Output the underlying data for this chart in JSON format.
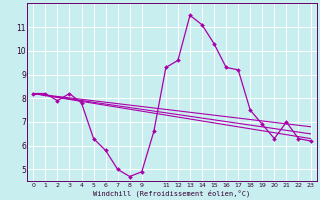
{
  "xlabel": "Windchill (Refroidissement éolien,°C)",
  "bg_color": "#c8eef0",
  "grid_color": "#ffffff",
  "line_color": "#aa00aa",
  "spine_color": "#660066",
  "xlim": [
    -0.5,
    23.5
  ],
  "ylim": [
    4.5,
    12.0
  ],
  "yticks": [
    5,
    6,
    7,
    8,
    9,
    10,
    11
  ],
  "xtick_positions": [
    0,
    1,
    2,
    3,
    4,
    5,
    6,
    7,
    8,
    9,
    11,
    12,
    13,
    14,
    15,
    16,
    17,
    18,
    19,
    20,
    21,
    22,
    23
  ],
  "xtick_labels": [
    "0",
    "1",
    "2",
    "3",
    "4",
    "5",
    "6",
    "7",
    "8",
    "9",
    "11",
    "12",
    "13",
    "14",
    "15",
    "16",
    "17",
    "18",
    "19",
    "20",
    "21",
    "22",
    "23"
  ],
  "series": [
    {
      "x": [
        0,
        1,
        2,
        3,
        4,
        5,
        6,
        7,
        8,
        9,
        10,
        11,
        12,
        13,
        14,
        15,
        16,
        17,
        18,
        19,
        20,
        21,
        22,
        23
      ],
      "y": [
        8.2,
        8.2,
        7.9,
        8.2,
        7.8,
        6.3,
        5.8,
        5.0,
        4.7,
        4.9,
        6.6,
        9.3,
        9.6,
        11.5,
        11.1,
        10.3,
        9.3,
        9.2,
        7.5,
        6.9,
        6.3,
        7.0,
        6.3,
        6.2
      ],
      "marker": "D",
      "markersize": 2.0,
      "linewidth": 0.9
    },
    {
      "x": [
        0,
        23
      ],
      "y": [
        8.2,
        6.3
      ],
      "marker": null,
      "markersize": 0,
      "linewidth": 0.8
    },
    {
      "x": [
        0,
        23
      ],
      "y": [
        8.2,
        6.5
      ],
      "marker": null,
      "markersize": 0,
      "linewidth": 0.8
    },
    {
      "x": [
        0,
        23
      ],
      "y": [
        8.2,
        6.8
      ],
      "marker": null,
      "markersize": 0,
      "linewidth": 0.8
    }
  ]
}
